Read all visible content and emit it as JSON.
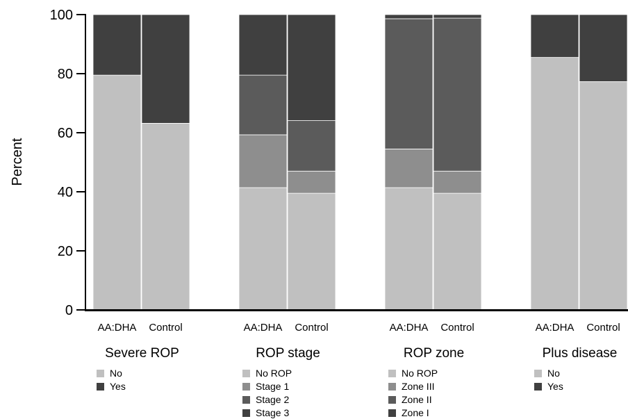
{
  "chart_data": {
    "type": "bar",
    "stacked": true,
    "ylabel": "Percent",
    "ylim": [
      0,
      100
    ],
    "yticks": [
      0,
      20,
      40,
      60,
      80,
      100
    ],
    "grid": false,
    "legend_placement": "below each panel",
    "panels": [
      {
        "title": "Severe ROP",
        "categories": [
          "AA:DHA",
          "Control"
        ],
        "series": [
          {
            "name": "No",
            "color": "#c0c0c0",
            "values": [
              79.5,
              63.2
            ]
          },
          {
            "name": "Yes",
            "color": "#404040",
            "values": [
              20.5,
              36.8
            ]
          }
        ]
      },
      {
        "title": "ROP stage",
        "categories": [
          "AA:DHA",
          "Control"
        ],
        "series": [
          {
            "name": "No ROP",
            "color": "#c0c0c0",
            "values": [
              41.4,
              39.5
            ]
          },
          {
            "name": "Stage 1",
            "color": "#8e8e8e",
            "values": [
              17.9,
              7.5
            ]
          },
          {
            "name": "Stage 2",
            "color": "#5b5b5b",
            "values": [
              20.2,
              17.1
            ]
          },
          {
            "name": "Stage 3",
            "color": "#404040",
            "values": [
              20.5,
              35.9
            ]
          }
        ]
      },
      {
        "title": "ROP zone",
        "categories": [
          "AA:DHA",
          "Control"
        ],
        "series": [
          {
            "name": "No ROP",
            "color": "#c0c0c0",
            "values": [
              41.4,
              39.5
            ]
          },
          {
            "name": "Zone III",
            "color": "#8e8e8e",
            "values": [
              13.1,
              7.5
            ]
          },
          {
            "name": "Zone II",
            "color": "#5b5b5b",
            "values": [
              44.1,
              51.8
            ]
          },
          {
            "name": "Zone I",
            "color": "#404040",
            "values": [
              1.4,
              1.2
            ]
          }
        ]
      },
      {
        "title": "Plus disease",
        "categories": [
          "AA:DHA",
          "Control"
        ],
        "series": [
          {
            "name": "No",
            "color": "#c0c0c0",
            "values": [
              85.5,
              77.3
            ]
          },
          {
            "name": "Yes",
            "color": "#404040",
            "values": [
              14.5,
              22.7
            ]
          }
        ]
      }
    ]
  }
}
